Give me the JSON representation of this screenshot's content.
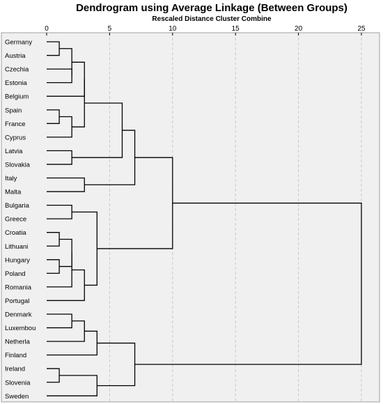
{
  "chart_data": {
    "type": "dendrogram",
    "title": "Dendrogram using Average Linkage (Between Groups)",
    "subtitle": "Rescaled Distance Cluster Combine",
    "xlim": [
      0,
      25
    ],
    "x_ticks": [
      0,
      5,
      10,
      15,
      20,
      25
    ],
    "grid": "vertical dashed",
    "colors": {
      "background": "#f0f0f0",
      "lines": "#000000",
      "grid": "#c8c8c8"
    },
    "leaves": [
      "Germany",
      "Austria",
      "Czechia",
      "Estonia",
      "Belgium",
      "Spain",
      "France",
      "Cyprus",
      "Latvia",
      "Slovakia",
      "Italy",
      "Malta",
      "Bulgaria",
      "Greece",
      "Croatia",
      "Lithuani",
      "Hungary",
      "Poland",
      "Romania",
      "Portugal",
      "Denmark",
      "Luxembou",
      "Netherla",
      "Finland",
      "Ireland",
      "Slovenia",
      "Sweden"
    ],
    "merges": [
      {
        "id": "c1",
        "children": [
          0,
          1
        ],
        "distance": 1.0
      },
      {
        "id": "c2",
        "children": [
          2,
          3
        ],
        "distance": 2.0
      },
      {
        "id": "c3",
        "children": [
          "c1",
          "c2"
        ],
        "distance": 2.0
      },
      {
        "id": "c4",
        "children": [
          "c3",
          4
        ],
        "distance": 3.0
      },
      {
        "id": "c5",
        "children": [
          5,
          6
        ],
        "distance": 1.0
      },
      {
        "id": "c6",
        "children": [
          "c5",
          7
        ],
        "distance": 2.0
      },
      {
        "id": "c7",
        "children": [
          "c4",
          "c6"
        ],
        "distance": 3.0
      },
      {
        "id": "c8",
        "children": [
          8,
          9
        ],
        "distance": 2.0
      },
      {
        "id": "c9",
        "children": [
          "c7",
          "c8"
        ],
        "distance": 6.0
      },
      {
        "id": "c10",
        "children": [
          10,
          11
        ],
        "distance": 3.0
      },
      {
        "id": "c11",
        "children": [
          "c9",
          "c10"
        ],
        "distance": 7.0
      },
      {
        "id": "c12",
        "children": [
          12,
          13
        ],
        "distance": 2.0
      },
      {
        "id": "c13",
        "children": [
          14,
          15
        ],
        "distance": 1.0
      },
      {
        "id": "c14",
        "children": [
          16,
          17
        ],
        "distance": 1.0
      },
      {
        "id": "c15",
        "children": [
          "c13",
          "c14"
        ],
        "distance": 2.0
      },
      {
        "id": "c16",
        "children": [
          "c15",
          18
        ],
        "distance": 2.0
      },
      {
        "id": "c17",
        "children": [
          "c16",
          19
        ],
        "distance": 3.0
      },
      {
        "id": "c18",
        "children": [
          "c12",
          "c17"
        ],
        "distance": 4.0
      },
      {
        "id": "c19",
        "children": [
          "c11",
          "c18"
        ],
        "distance": 10.0
      },
      {
        "id": "c20",
        "children": [
          20,
          21
        ],
        "distance": 2.0
      },
      {
        "id": "c21",
        "children": [
          "c20",
          22
        ],
        "distance": 3.0
      },
      {
        "id": "c22",
        "children": [
          "c21",
          23
        ],
        "distance": 4.0
      },
      {
        "id": "c23",
        "children": [
          24,
          25
        ],
        "distance": 1.0
      },
      {
        "id": "c24",
        "children": [
          "c23",
          26
        ],
        "distance": 4.0
      },
      {
        "id": "c25",
        "children": [
          "c22",
          "c24"
        ],
        "distance": 7.0
      },
      {
        "id": "c26",
        "children": [
          "c19",
          "c25"
        ],
        "distance": 25.0
      }
    ]
  }
}
